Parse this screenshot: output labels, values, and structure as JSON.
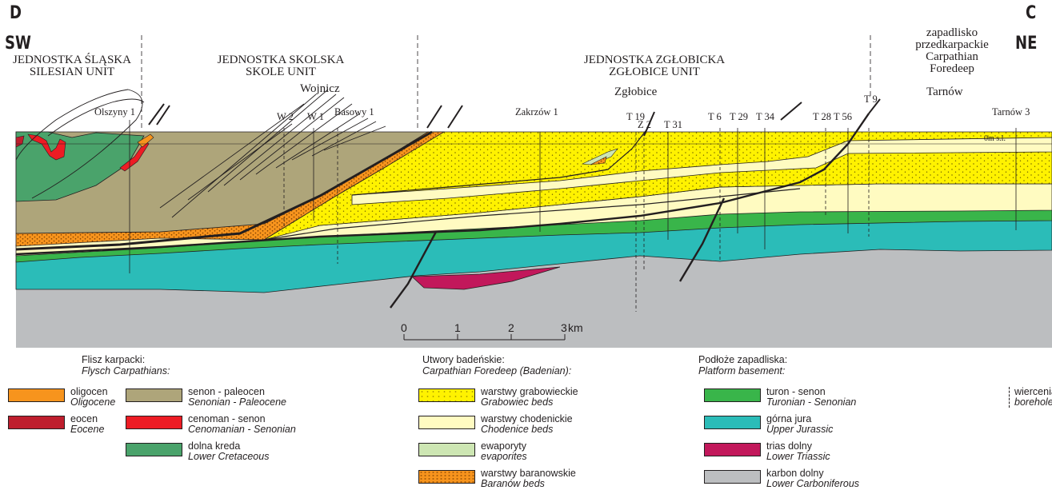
{
  "ends": {
    "left_letter": "D",
    "left_dir": "SW",
    "right_letter": "C",
    "right_dir": "NE"
  },
  "units": {
    "silesian": {
      "line1": "JEDNOSTKA ŚLĄSKA",
      "line2": "SILESIAN UNIT"
    },
    "skole": {
      "line1": "JEDNOSTKA  SKOLSKA",
      "line2": "SKOLE  UNIT"
    },
    "zglobice": {
      "line1": "JEDNOSTKA  ZGŁOBICKA",
      "line2": "ZGŁOBICE  UNIT"
    },
    "foredeep": {
      "line1": "zapadlisko",
      "line2": "przedkarpackie",
      "line3": "Carpathian",
      "line4": "Foredeep"
    }
  },
  "places": {
    "wojnicz": "Wojnicz",
    "zglobice": "Zgłobice",
    "tarnow": "Tarnów"
  },
  "boreholes": {
    "olszyny": "Olszyny 1",
    "w2": "W 2",
    "w1": "W 1",
    "basowy": "Basowy 1",
    "zakrzow": "Zakrzów 1",
    "t19": "T 19",
    "z2": "Z 2",
    "t31": "T 31",
    "t6": "T 6",
    "t29": "T 29",
    "t34": "T 34",
    "t28": "T 28",
    "t56": "T 56",
    "t9": "T 9",
    "tarnow3": "Tarnów 3"
  },
  "sea_level": "0m s.l.",
  "scale": {
    "ticks": [
      "0",
      "1",
      "2",
      "3"
    ],
    "unit": "km"
  },
  "legend": {
    "flysch": {
      "head_pl": "Flisz karpacki:",
      "head_en": "Flysch Carpathians:",
      "items": [
        {
          "pl": "oligocen",
          "en": "Oligocene",
          "color": "#f7941d"
        },
        {
          "pl": "eocen",
          "en": "Eocene",
          "color": "#be1e2d"
        },
        {
          "pl": "senon - paleocen",
          "en": "Senonian - Paleocene",
          "color": "#aea57a"
        },
        {
          "pl": "cenoman - senon",
          "en": "Cenomanian - Senonian",
          "color": "#ed1c24"
        },
        {
          "pl": "dolna kreda",
          "en": "Lower Cretaceous",
          "color": "#4aa36b"
        }
      ]
    },
    "badenian": {
      "head_pl": "Utwory badeńskie:",
      "head_en": "Carpathian Foredeep (Badenian):",
      "items": [
        {
          "pl": "warstwy grabowieckie",
          "en": "Grabowiec beds",
          "color": "#fff200"
        },
        {
          "pl": "warstwy chodenickie",
          "en": "Chodenice beds",
          "color": "#fffbc1"
        },
        {
          "pl": "ewaporyty",
          "en": "evaporites",
          "color": "#cde6b3"
        },
        {
          "pl": "warstwy baranowskie",
          "en": "Baranów beds",
          "color": "#f7941d"
        }
      ]
    },
    "basement": {
      "head_pl": "Podłoże zapadliska:",
      "head_en": "Platform basement:",
      "items": [
        {
          "pl": "turon - senon",
          "en": "Turonian - Senonian",
          "color": "#39b54a"
        },
        {
          "pl": "górna jura",
          "en": "Upper Jurassic",
          "color": "#2bbcb8"
        },
        {
          "pl": "trias dolny",
          "en": "Lower Triassic",
          "color": "#c2185b"
        },
        {
          "pl": "karbon dolny",
          "en": "Lower Carboniferous",
          "color": "#bcbec0"
        }
      ]
    },
    "boreholes": {
      "pl": "wiercenia",
      "en": "boreholes"
    }
  }
}
